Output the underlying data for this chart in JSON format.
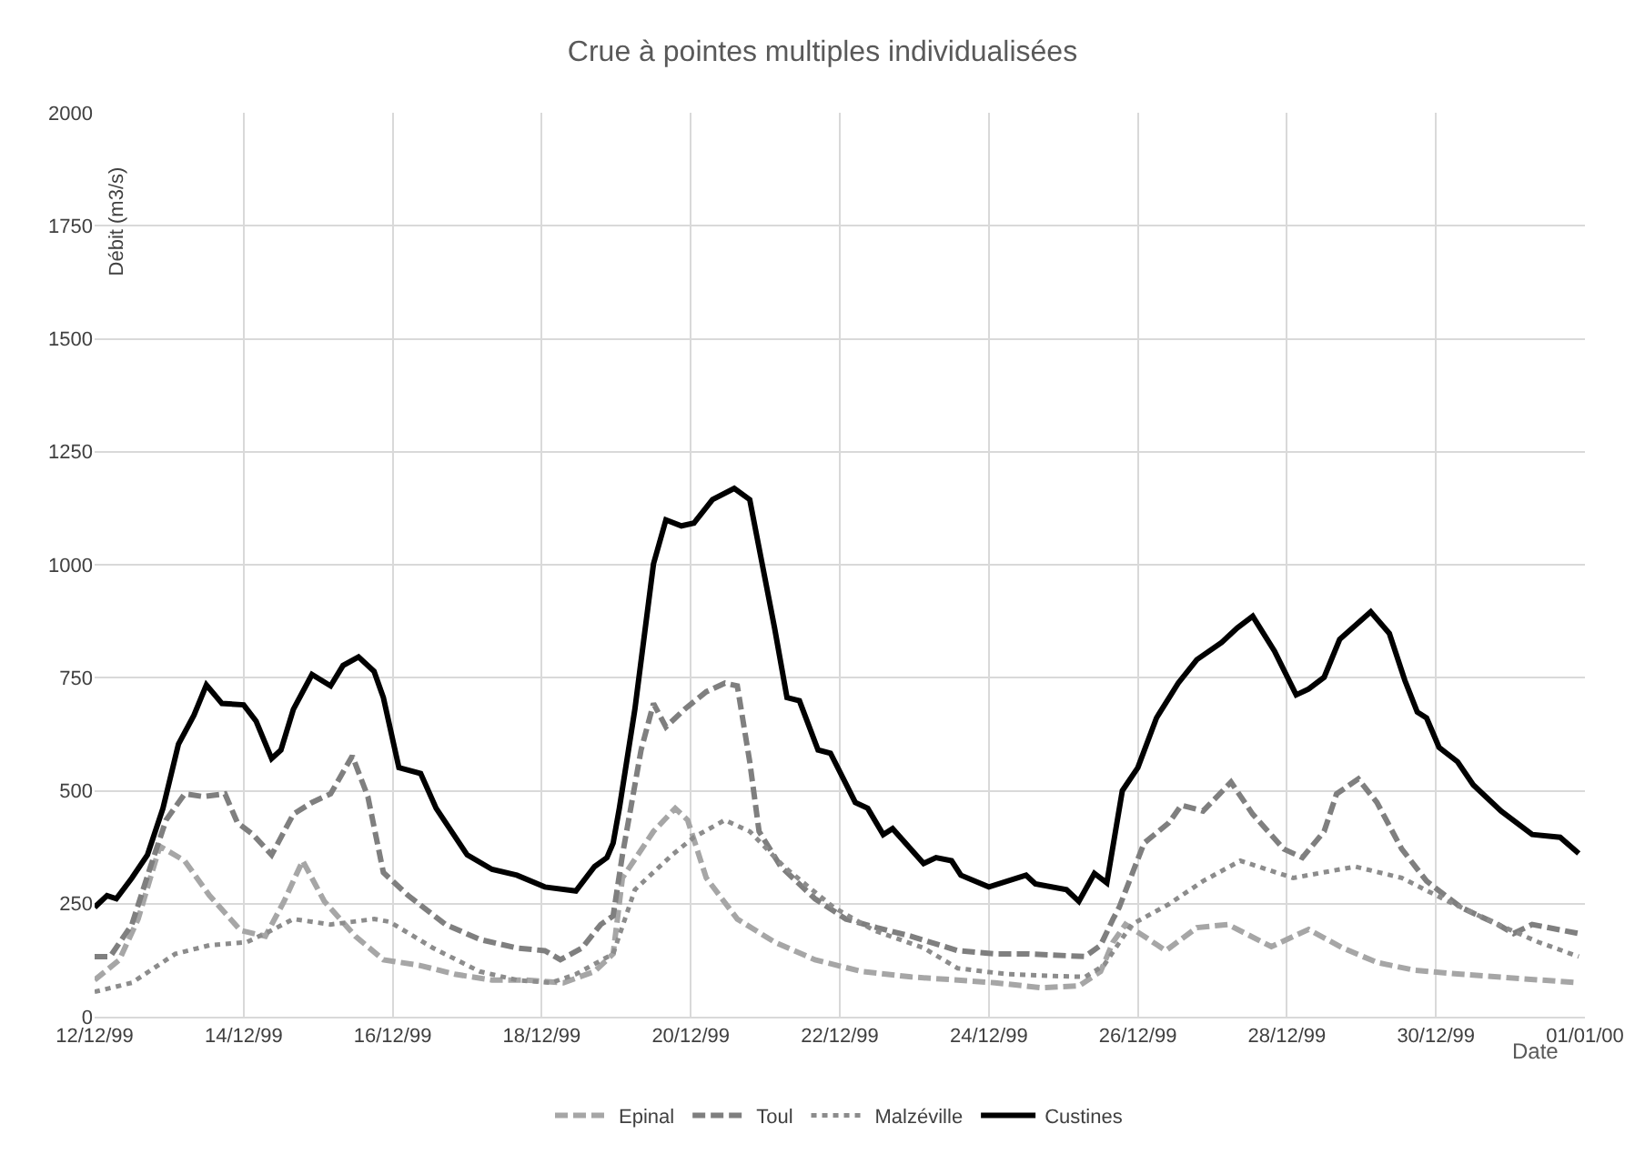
{
  "chart_data": {
    "type": "line",
    "title": "Crue à pointes multiples individualisées",
    "xlabel": "Date",
    "ylabel": "Débit (m3/s)",
    "xlim": [
      "1999-12-12",
      "2000-01-01"
    ],
    "xticks": [
      {
        "value": "1999-12-12",
        "label": "12/12/99"
      },
      {
        "value": "1999-12-14",
        "label": "14/12/99"
      },
      {
        "value": "1999-12-16",
        "label": "16/12/99"
      },
      {
        "value": "1999-12-18",
        "label": "18/12/99"
      },
      {
        "value": "1999-12-20",
        "label": "20/12/99"
      },
      {
        "value": "1999-12-22",
        "label": "22/12/99"
      },
      {
        "value": "1999-12-24",
        "label": "24/12/99"
      },
      {
        "value": "1999-12-26",
        "label": "26/12/99"
      },
      {
        "value": "1999-12-28",
        "label": "28/12/99"
      },
      {
        "value": "1999-12-30",
        "label": "30/12/99"
      },
      {
        "value": "2000-01-01",
        "label": "01/01/00"
      }
    ],
    "ylim": [
      0,
      2000
    ],
    "yticks": [
      0,
      250,
      500,
      750,
      1000,
      1250,
      1500,
      1750,
      2000
    ],
    "grid": true,
    "legend": "bottom",
    "marker": "none",
    "series": [
      {
        "name": "Epinal",
        "color": "#a6a6a6",
        "line_style": "dashed",
        "x": [
          "1999-12-12T00:00",
          "1999-12-12T08:00",
          "1999-12-12T14:00",
          "1999-12-12T21:00",
          "1999-12-13T05:00",
          "1999-12-13T13:00",
          "1999-12-13T23:00",
          "1999-12-14T07:00",
          "1999-12-14T13:00",
          "1999-12-14T19:00",
          "1999-12-15T02:00",
          "1999-12-15T12:00",
          "1999-12-15T21:00",
          "1999-12-16T09:00",
          "1999-12-16T20:00",
          "1999-12-17T08:00",
          "1999-12-17T19:00",
          "1999-12-18T07:00",
          "1999-12-18T17:00",
          "1999-12-18T23:00",
          "1999-12-19T02:00",
          "1999-12-19T12:00",
          "1999-12-19T19:00",
          "1999-12-19T23:00",
          "1999-12-20T05:00",
          "1999-12-20T15:00",
          "1999-12-21T03:00",
          "1999-12-21T16:00",
          "1999-12-22T07:00",
          "1999-12-22T23:00",
          "1999-12-23T14:00",
          "1999-12-24T02:00",
          "1999-12-24T17:00",
          "1999-12-25T05:00",
          "1999-12-25T12:00",
          "1999-12-25T16:00",
          "1999-12-25T20:00",
          "1999-12-26T02:00",
          "1999-12-26T09:00",
          "1999-12-26T19:00",
          "1999-12-27T05:00",
          "1999-12-27T19:00",
          "1999-12-28T07:00",
          "1999-12-28T18:00",
          "1999-12-29T05:00",
          "1999-12-29T17:00",
          "1999-12-30T08:00",
          "1999-12-31T04:00",
          "1999-12-31T22:00"
        ],
        "values": [
          81,
          126,
          216,
          377,
          345,
          268,
          191,
          178,
          255,
          345,
          255,
          178,
          126,
          113,
          94,
          81,
          81,
          75,
          100,
          139,
          307,
          410,
          461,
          435,
          307,
          216,
          165,
          126,
          100,
          88,
          81,
          75,
          64,
          68,
          100,
          165,
          204,
          178,
          146,
          197,
          204,
          155,
          193,
          152,
          120,
          103,
          94,
          84,
          75
        ]
      },
      {
        "name": "Toul",
        "color": "#7f7f7f",
        "line_style": "dashed",
        "x": [
          "1999-12-12T00:00",
          "1999-12-12T05:00",
          "1999-12-12T12:00",
          "1999-12-12T18:00",
          "1999-12-12T23:00",
          "1999-12-13T05:00",
          "1999-12-13T11:00",
          "1999-12-13T18:00",
          "1999-12-13T22:00",
          "1999-12-14T03:00",
          "1999-12-14T09:00",
          "1999-12-14T16:00",
          "1999-12-14T22:00",
          "1999-12-15T04:00",
          "1999-12-15T11:00",
          "1999-12-15T16:00",
          "1999-12-15T21:00",
          "1999-12-16T05:00",
          "1999-12-16T17:00",
          "1999-12-17T04:00",
          "1999-12-17T16:00",
          "1999-12-18T01:00",
          "1999-12-18T06:00",
          "1999-12-18T13:00",
          "1999-12-18T19:00",
          "1999-12-18T23:00",
          "1999-12-19T02:00",
          "1999-12-19T08:00",
          "1999-12-19T12:00",
          "1999-12-19T16:00",
          "1999-12-19T22:00",
          "1999-12-20T05:00",
          "1999-12-20T11:00",
          "1999-12-20T15:00",
          "1999-12-20T19:00",
          "1999-12-20T22:00",
          "1999-12-21T05:00",
          "1999-12-21T16:00",
          "1999-12-22T02:00",
          "1999-12-22T12:00",
          "1999-12-22T23:00",
          "1999-12-23T14:00",
          "1999-12-24T02:00",
          "1999-12-24T13:00",
          "1999-12-25T07:00",
          "1999-12-25T12:00",
          "1999-12-25T16:00",
          "1999-12-25T18:00",
          "1999-12-26T02:00",
          "1999-12-26T10:00",
          "1999-12-26T14:00",
          "1999-12-26T21:00",
          "1999-12-27T06:00",
          "1999-12-27T13:00",
          "1999-12-27T23:00",
          "1999-12-28T05:00",
          "1999-12-28T12:00",
          "1999-12-28T16:00",
          "1999-12-28T23:00",
          "1999-12-29T05:00",
          "1999-12-29T13:00",
          "1999-12-29T21:00",
          "1999-12-30T08:00",
          "1999-12-30T20:00",
          "1999-12-31T01:00",
          "1999-12-31T07:00",
          "1999-12-31T22:00"
        ],
        "values": [
          133,
          133,
          204,
          332,
          435,
          493,
          487,
          493,
          429,
          403,
          358,
          448,
          474,
          493,
          577,
          487,
          319,
          268,
          204,
          171,
          152,
          146,
          126,
          152,
          204,
          223,
          358,
          590,
          693,
          641,
          680,
          719,
          738,
          732,
          564,
          410,
          332,
          261,
          216,
          197,
          178,
          146,
          139,
          139,
          133,
          158,
          216,
          242,
          384,
          429,
          468,
          455,
          519,
          448,
          371,
          352,
          410,
          493,
          526,
          474,
          371,
          300,
          242,
          204,
          184,
          204,
          184
        ]
      },
      {
        "name": "Malzéville",
        "color": "#8c8c8c",
        "line_style": "dotted",
        "x": [
          "1999-12-12T00:00",
          "1999-12-12T12:00",
          "1999-12-13T02:00",
          "1999-12-13T13:00",
          "1999-12-14T01:00",
          "1999-12-14T09:00",
          "1999-12-14T16:00",
          "1999-12-15T04:00",
          "1999-12-15T18:00",
          "1999-12-15T23:00",
          "1999-12-16T13:00",
          "1999-12-17T04:00",
          "1999-12-17T16:00",
          "1999-12-18T03:00",
          "1999-12-18T11:00",
          "1999-12-18T23:00",
          "1999-12-19T06:00",
          "1999-12-19T18:00",
          "1999-12-20T01:00",
          "1999-12-20T11:00",
          "1999-12-20T19:00",
          "1999-12-21T06:00",
          "1999-12-21T22:00",
          "1999-12-22T11:00",
          "1999-12-23T03:00",
          "1999-12-23T14:00",
          "1999-12-24T06:00",
          "1999-12-24T21:00",
          "1999-12-25T07:00",
          "1999-12-25T13:00",
          "1999-12-25T22:00",
          "1999-12-26T10:00",
          "1999-12-26T21:00",
          "1999-12-27T09:00",
          "1999-12-28T02:00",
          "1999-12-28T22:00",
          "1999-12-29T13:00",
          "1999-12-30T04:00",
          "1999-12-30T20:00",
          "1999-12-31T09:00",
          "1999-12-31T22:00"
        ],
        "values": [
          55,
          75,
          139,
          158,
          165,
          191,
          216,
          204,
          216,
          210,
          152,
          100,
          81,
          75,
          94,
          139,
          281,
          358,
          397,
          435,
          410,
          332,
          242,
          191,
          152,
          107,
          94,
          90,
          88,
          113,
          204,
          249,
          300,
          345,
          307,
          332,
          307,
          255,
          204,
          165,
          133
        ]
      },
      {
        "name": "Custines",
        "color": "#000000",
        "line_style": "solid",
        "x": [
          "1999-12-12T00:00",
          "1999-12-12T04:00",
          "1999-12-12T07:00",
          "1999-12-12T12:00",
          "1999-12-12T17:00",
          "1999-12-12T22:00",
          "1999-12-13T03:00",
          "1999-12-13T08:00",
          "1999-12-13T12:00",
          "1999-12-13T17:00",
          "1999-12-14T00:00",
          "1999-12-14T04:00",
          "1999-12-14T09:00",
          "1999-12-14T12:00",
          "1999-12-14T16:00",
          "1999-12-14T22:00",
          "1999-12-15T04:00",
          "1999-12-15T08:00",
          "1999-12-15T13:00",
          "1999-12-15T18:00",
          "1999-12-15T21:00",
          "1999-12-16T02:00",
          "1999-12-16T09:00",
          "1999-12-16T14:00",
          "1999-12-17T00:00",
          "1999-12-17T08:00",
          "1999-12-17T16:00",
          "1999-12-18T01:00",
          "1999-12-18T11:00",
          "1999-12-18T17:00",
          "1999-12-18T21:00",
          "1999-12-18T23:00",
          "1999-12-19T01:00",
          "1999-12-19T06:00",
          "1999-12-19T12:00",
          "1999-12-19T16:00",
          "1999-12-19T21:00",
          "1999-12-20T01:00",
          "1999-12-20T07:00",
          "1999-12-20T14:00",
          "1999-12-20T19:00",
          "1999-12-20T23:00",
          "1999-12-21T03:00",
          "1999-12-21T07:00",
          "1999-12-21T11:00",
          "1999-12-21T17:00",
          "1999-12-21T21:00",
          "1999-12-22T05:00",
          "1999-12-22T09:00",
          "1999-12-22T14:00",
          "1999-12-22T17:00",
          "1999-12-23T03:00",
          "1999-12-23T07:00",
          "1999-12-23T12:00",
          "1999-12-23T15:00",
          "1999-12-24T00:00",
          "1999-12-24T12:00",
          "1999-12-24T15:00",
          "1999-12-25T01:00",
          "1999-12-25T05:00",
          "1999-12-25T10:00",
          "1999-12-25T14:00",
          "1999-12-25T19:00",
          "1999-12-26T00:00",
          "1999-12-26T06:00",
          "1999-12-26T13:00",
          "1999-12-26T19:00",
          "1999-12-27T03:00",
          "1999-12-27T08:00",
          "1999-12-27T13:00",
          "1999-12-27T20:00",
          "1999-12-28T03:00",
          "1999-12-28T07:00",
          "1999-12-28T12:00",
          "1999-12-28T17:00",
          "1999-12-29T03:00",
          "1999-12-29T09:00",
          "1999-12-29T14:00",
          "1999-12-29T18:00",
          "1999-12-29T21:00",
          "1999-12-30T01:00",
          "1999-12-30T07:00",
          "1999-12-30T12:00",
          "1999-12-30T21:00",
          "1999-12-31T07:00",
          "1999-12-31T16:00",
          "1999-12-31T22:00"
        ],
        "values": [
          242,
          268,
          261,
          307,
          358,
          461,
          603,
          667,
          734,
          693,
          690,
          654,
          571,
          590,
          680,
          757,
          732,
          777,
          796,
          764,
          706,
          551,
          538,
          461,
          358,
          326,
          313,
          287,
          278,
          332,
          352,
          384,
          461,
          680,
          1002,
          1099,
          1086,
          1092,
          1144,
          1169,
          1144,
          1002,
          860,
          706,
          699,
          590,
          583,
          474,
          461,
          403,
          416,
          339,
          352,
          345,
          313,
          287,
          313,
          294,
          281,
          255,
          317,
          296,
          500,
          551,
          661,
          738,
          790,
          828,
          860,
          886,
          809,
          712,
          725,
          751,
          835,
          896,
          848,
          744,
          674,
          661,
          596,
          564,
          513,
          455,
          403,
          397,
          361
        ]
      }
    ]
  }
}
